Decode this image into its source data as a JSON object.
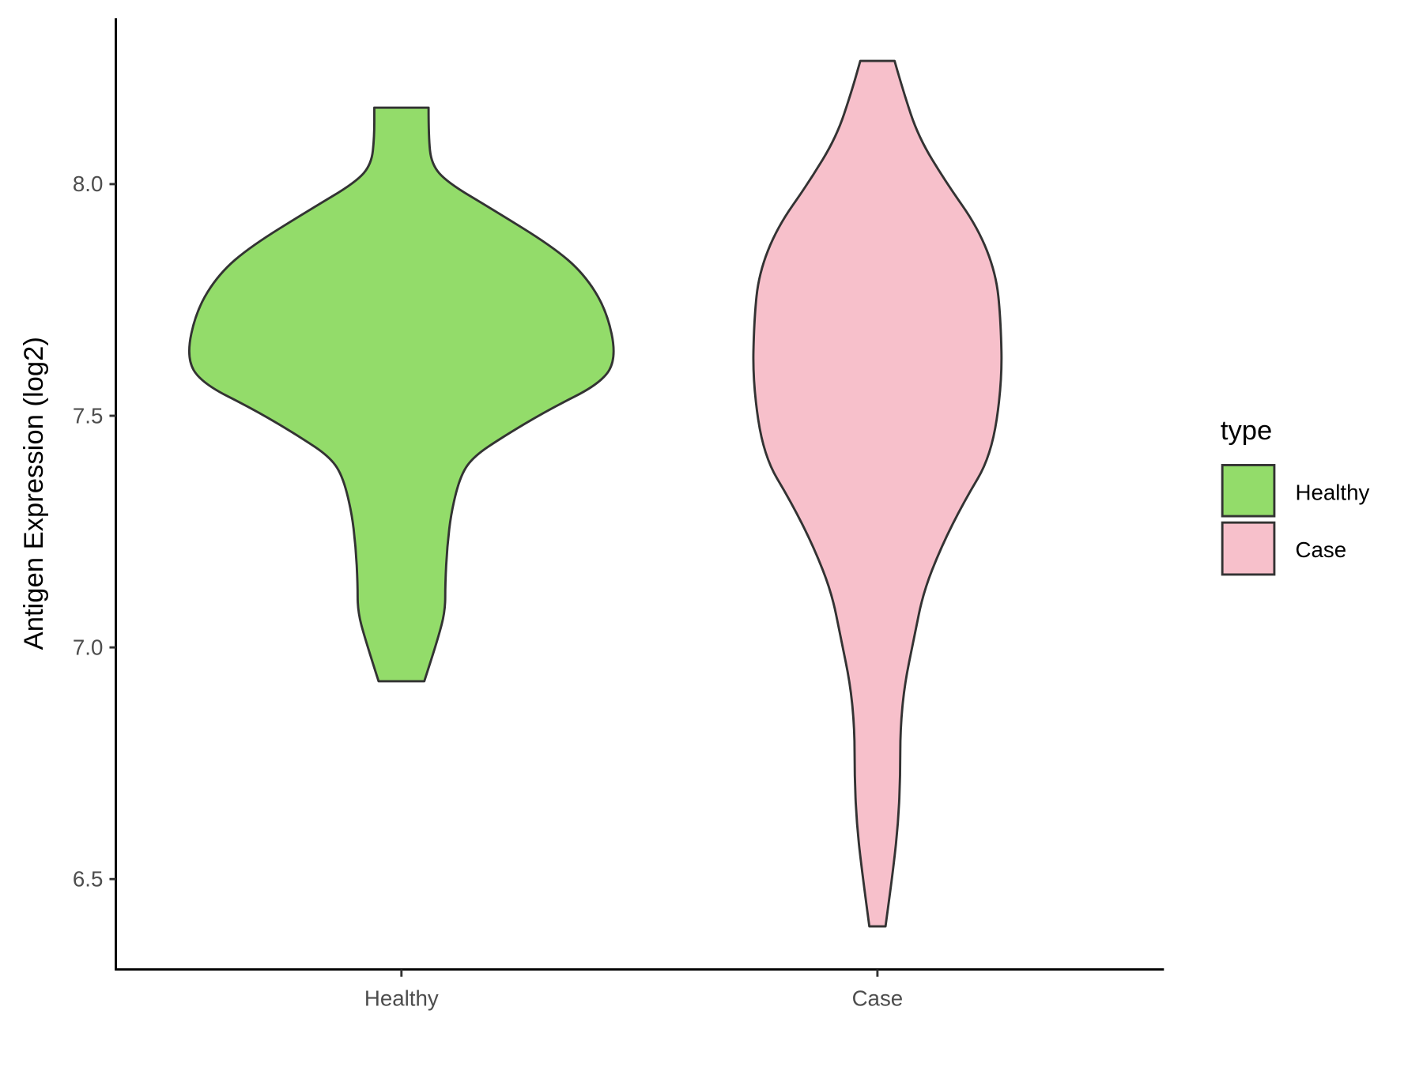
{
  "chart_data": {
    "type": "violin",
    "title": "",
    "xlabel": "",
    "ylabel": "Antigen Expression (log2)",
    "categories": [
      "Healthy",
      "Case"
    ],
    "ylim": [
      6.305,
      8.358
    ],
    "yticks": [
      "6.5",
      "7.0",
      "7.5",
      "8.0"
    ],
    "grid": false,
    "legend": {
      "title": "type",
      "position": "right",
      "entries": [
        "Healthy",
        "Case"
      ]
    },
    "series": [
      {
        "name": "Healthy",
        "color": "#93DC6A",
        "profile_y": [
          8.165,
          8.102,
          8.043,
          8.004,
          7.945,
          7.866,
          7.807,
          7.728,
          7.626,
          7.571,
          7.512,
          7.453,
          7.413,
          7.374,
          7.295,
          7.217,
          7.138,
          7.079,
          7.02,
          6.927
        ],
        "half_width": [
          0.057,
          0.057,
          0.063,
          0.096,
          0.192,
          0.316,
          0.383,
          0.431,
          0.452,
          0.421,
          0.307,
          0.211,
          0.153,
          0.125,
          0.105,
          0.096,
          0.092,
          0.092,
          0.077,
          0.048
        ]
      },
      {
        "name": "Case",
        "color": "#F7C0CB",
        "profile_y": [
          8.266,
          8.201,
          8.102,
          8.004,
          7.906,
          7.807,
          7.709,
          7.571,
          7.413,
          7.315,
          7.217,
          7.118,
          7.02,
          6.921,
          6.823,
          6.724,
          6.626,
          6.528,
          6.398
        ],
        "half_width": [
          0.036,
          0.054,
          0.086,
          0.144,
          0.211,
          0.249,
          0.259,
          0.262,
          0.239,
          0.182,
          0.134,
          0.096,
          0.077,
          0.057,
          0.048,
          0.048,
          0.044,
          0.034,
          0.017
        ]
      }
    ],
    "outline_color": "#333333"
  }
}
